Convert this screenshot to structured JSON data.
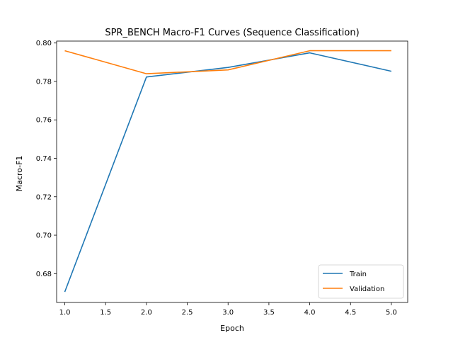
{
  "chart_data": {
    "type": "line",
    "title": "SPR_BENCH Macro-F1 Curves (Sequence Classification)",
    "xlabel": "Epoch",
    "ylabel": "Macro-F1",
    "x": [
      1.0,
      2.0,
      3.0,
      4.0,
      5.0
    ],
    "xlim": [
      0.9,
      5.2
    ],
    "ylim": [
      0.665,
      0.801
    ],
    "xticks": [
      1.0,
      1.5,
      2.0,
      2.5,
      3.0,
      3.5,
      4.0,
      4.5,
      5.0
    ],
    "xtick_labels": [
      "1.0",
      "1.5",
      "2.0",
      "2.5",
      "3.0",
      "3.5",
      "4.0",
      "4.5",
      "5.0"
    ],
    "yticks": [
      0.68,
      0.7,
      0.72,
      0.74,
      0.76,
      0.78,
      0.8
    ],
    "ytick_labels": [
      "0.68",
      "0.70",
      "0.72",
      "0.74",
      "0.76",
      "0.78",
      "0.80"
    ],
    "grid": false,
    "legend_position": "lower-right",
    "series": [
      {
        "name": "Train",
        "color": "#1f77b4",
        "values": [
          0.6705,
          0.7823,
          0.7873,
          0.7949,
          0.7853
        ]
      },
      {
        "name": "Validation",
        "color": "#ff7f0e",
        "values": [
          0.796,
          0.784,
          0.786,
          0.796,
          0.796
        ]
      }
    ]
  }
}
